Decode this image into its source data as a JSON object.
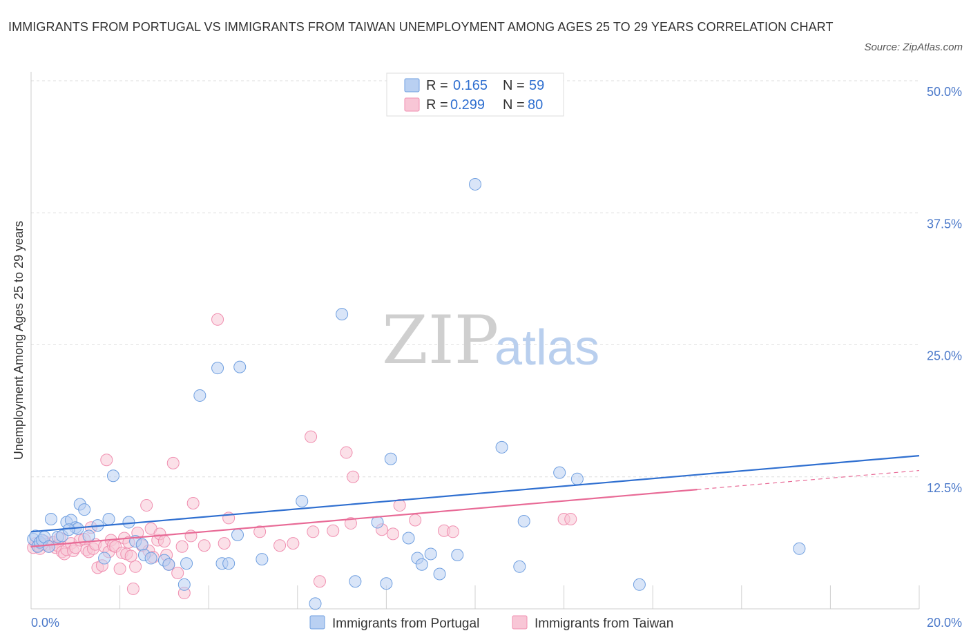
{
  "title": "IMMIGRANTS FROM PORTUGAL VS IMMIGRANTS FROM TAIWAN UNEMPLOYMENT AMONG AGES 25 TO 29 YEARS CORRELATION CHART",
  "source": "Source: ZipAtlas.com",
  "watermark": {
    "zip": "ZIP",
    "atlas": "atlas"
  },
  "colors": {
    "portugal": "#6f9fe0",
    "taiwan": "#f08fb0",
    "portugal_line": "#2f6fd0",
    "taiwan_line": "#e86a96"
  },
  "chart_data": {
    "type": "scatter",
    "xlabel": "",
    "ylabel": "Unemployment Among Ages 25 to 29 years",
    "xlim": [
      0,
      20
    ],
    "ylim": [
      0,
      50
    ],
    "x_tick_labels": [
      {
        "value": 0,
        "label": "0.0%"
      },
      {
        "value": 20,
        "label": "20.0%"
      }
    ],
    "y_tick_labels": [
      {
        "value": 12.5,
        "label": "12.5%"
      },
      {
        "value": 25,
        "label": "25.0%"
      },
      {
        "value": 37.5,
        "label": "37.5%"
      },
      {
        "value": 50,
        "label": "50.0%"
      }
    ],
    "legend": [
      {
        "series": "Immigrants from Portugal",
        "r_label": "R =",
        "r": "0.165",
        "n_label": "N =",
        "n": "59"
      },
      {
        "series": "Immigrants from Taiwan",
        "r_label": "R =",
        "r": "0.299",
        "n_label": "N =",
        "n": "80"
      }
    ],
    "series": [
      {
        "name": "Immigrants from Portugal",
        "trend": {
          "x": [
            0,
            20
          ],
          "y": [
            7.3,
            14.5
          ]
        },
        "points": [
          [
            0.05,
            6.6
          ],
          [
            0.1,
            6.9
          ],
          [
            0.15,
            5.9
          ],
          [
            0.2,
            6.3
          ],
          [
            0.25,
            6.5
          ],
          [
            0.3,
            6.8
          ],
          [
            0.4,
            5.9
          ],
          [
            0.45,
            8.5
          ],
          [
            0.6,
            6.8
          ],
          [
            0.7,
            6.9
          ],
          [
            0.8,
            8.2
          ],
          [
            0.9,
            8.4
          ],
          [
            1.0,
            7.7
          ],
          [
            1.1,
            9.9
          ],
          [
            1.2,
            9.4
          ],
          [
            1.3,
            6.9
          ],
          [
            1.5,
            7.9
          ],
          [
            1.65,
            4.8
          ],
          [
            1.75,
            8.5
          ],
          [
            1.85,
            12.6
          ],
          [
            2.2,
            8.2
          ],
          [
            2.35,
            6.4
          ],
          [
            2.5,
            6.1
          ],
          [
            2.55,
            5.1
          ],
          [
            2.7,
            4.8
          ],
          [
            3.0,
            4.6
          ],
          [
            3.1,
            4.2
          ],
          [
            3.45,
            2.3
          ],
          [
            3.5,
            4.3
          ],
          [
            3.8,
            20.2
          ],
          [
            4.2,
            22.8
          ],
          [
            4.3,
            4.3
          ],
          [
            4.45,
            4.3
          ],
          [
            4.65,
            7.0
          ],
          [
            4.7,
            22.9
          ],
          [
            5.2,
            4.7
          ],
          [
            6.1,
            10.2
          ],
          [
            6.4,
            0.5
          ],
          [
            7.0,
            27.9
          ],
          [
            7.3,
            2.6
          ],
          [
            7.8,
            8.2
          ],
          [
            8.0,
            2.4
          ],
          [
            8.1,
            14.2
          ],
          [
            8.5,
            6.7
          ],
          [
            8.7,
            4.8
          ],
          [
            8.8,
            4.2
          ],
          [
            9.0,
            5.2
          ],
          [
            9.2,
            3.3
          ],
          [
            9.6,
            5.1
          ],
          [
            10.0,
            40.2
          ],
          [
            10.6,
            15.3
          ],
          [
            11.0,
            4.0
          ],
          [
            11.1,
            8.3
          ],
          [
            11.9,
            12.9
          ],
          [
            12.3,
            12.3
          ],
          [
            13.7,
            2.3
          ],
          [
            17.3,
            5.7
          ],
          [
            1.05,
            7.6
          ],
          [
            0.85,
            7.5
          ]
        ]
      },
      {
        "name": "Immigrants from Taiwan",
        "trend": {
          "x": [
            0,
            15
          ],
          "y": [
            5.9,
            11.3
          ]
        },
        "trend_dashed": {
          "x": [
            15,
            20
          ],
          "y": [
            11.3,
            13.1
          ]
        },
        "points": [
          [
            0.05,
            5.8
          ],
          [
            0.1,
            6.2
          ],
          [
            0.15,
            6.0
          ],
          [
            0.2,
            5.7
          ],
          [
            0.3,
            6.4
          ],
          [
            0.35,
            6.1
          ],
          [
            0.4,
            5.9
          ],
          [
            0.5,
            6.3
          ],
          [
            0.55,
            5.8
          ],
          [
            0.6,
            6.0
          ],
          [
            0.7,
            5.4
          ],
          [
            0.75,
            5.2
          ],
          [
            0.8,
            5.6
          ],
          [
            0.9,
            6.2
          ],
          [
            0.95,
            5.5
          ],
          [
            1.0,
            5.8
          ],
          [
            1.1,
            6.5
          ],
          [
            1.2,
            6.6
          ],
          [
            1.25,
            5.6
          ],
          [
            1.3,
            5.4
          ],
          [
            1.4,
            5.7
          ],
          [
            1.45,
            6.1
          ],
          [
            1.5,
            3.9
          ],
          [
            1.6,
            4.1
          ],
          [
            1.65,
            5.9
          ],
          [
            1.7,
            14.1
          ],
          [
            1.75,
            5.4
          ],
          [
            1.8,
            6.5
          ],
          [
            1.85,
            6.0
          ],
          [
            1.9,
            5.9
          ],
          [
            2.0,
            3.8
          ],
          [
            2.05,
            5.3
          ],
          [
            2.1,
            6.7
          ],
          [
            2.15,
            5.2
          ],
          [
            2.2,
            6.3
          ],
          [
            2.3,
            1.9
          ],
          [
            2.35,
            4.0
          ],
          [
            2.4,
            7.2
          ],
          [
            2.5,
            6.0
          ],
          [
            2.6,
            9.8
          ],
          [
            2.65,
            5.5
          ],
          [
            2.7,
            7.6
          ],
          [
            2.75,
            4.9
          ],
          [
            2.85,
            6.5
          ],
          [
            2.9,
            7.1
          ],
          [
            3.0,
            6.4
          ],
          [
            3.05,
            5.1
          ],
          [
            3.1,
            4.2
          ],
          [
            3.2,
            13.8
          ],
          [
            3.3,
            3.4
          ],
          [
            3.4,
            5.9
          ],
          [
            3.45,
            1.5
          ],
          [
            3.6,
            6.9
          ],
          [
            3.65,
            10.0
          ],
          [
            3.9,
            6.0
          ],
          [
            4.2,
            27.4
          ],
          [
            4.35,
            6.2
          ],
          [
            4.45,
            8.6
          ],
          [
            5.15,
            7.3
          ],
          [
            5.6,
            6.0
          ],
          [
            5.9,
            6.2
          ],
          [
            6.3,
            16.3
          ],
          [
            6.35,
            7.3
          ],
          [
            6.5,
            2.6
          ],
          [
            6.8,
            7.4
          ],
          [
            7.1,
            14.8
          ],
          [
            7.2,
            8.1
          ],
          [
            7.25,
            12.5
          ],
          [
            7.9,
            7.5
          ],
          [
            8.15,
            7.1
          ],
          [
            8.3,
            9.8
          ],
          [
            8.65,
            8.4
          ],
          [
            9.3,
            7.4
          ],
          [
            9.5,
            7.3
          ],
          [
            12.0,
            8.5
          ],
          [
            12.15,
            8.5
          ],
          [
            2.25,
            5.0
          ],
          [
            1.35,
            7.7
          ],
          [
            0.65,
            6.7
          ],
          [
            0.25,
            6.1
          ]
        ]
      }
    ]
  }
}
